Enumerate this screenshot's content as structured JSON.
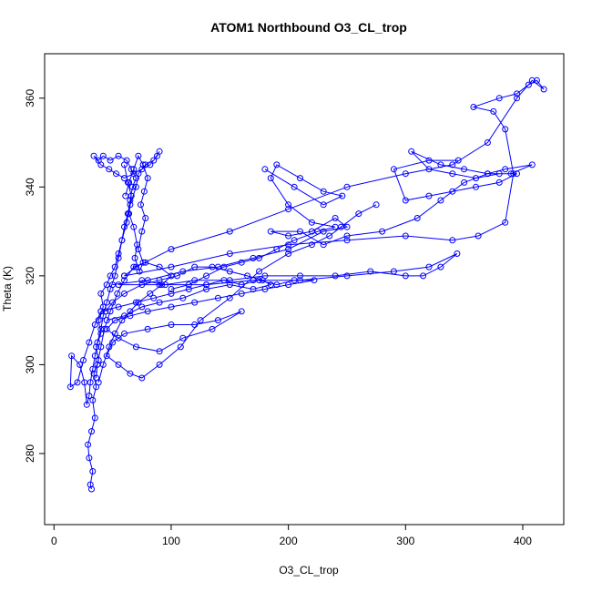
{
  "chart_data": {
    "type": "line",
    "title": "ATOM1 Northbound O3_CL_trop",
    "xlabel": "O3_CL_trop",
    "ylabel": "Theta (K)",
    "xlim": [
      -8,
      435
    ],
    "ylim": [
      264,
      370
    ],
    "xticks": [
      0,
      100,
      200,
      300,
      400
    ],
    "yticks": [
      280,
      300,
      320,
      340,
      360
    ],
    "grid": false,
    "legend": "none",
    "color": "#0000ff",
    "series": [
      {
        "points": [
          [
            32,
            272
          ],
          [
            31,
            273
          ],
          [
            33,
            276
          ],
          [
            30,
            279
          ],
          [
            29,
            282
          ],
          [
            32,
            285
          ],
          [
            35,
            288
          ],
          [
            33,
            292
          ],
          [
            36,
            295
          ],
          [
            34,
            298
          ],
          [
            38,
            301
          ],
          [
            36,
            304
          ],
          [
            40,
            307
          ],
          [
            38,
            310
          ],
          [
            42,
            313
          ],
          [
            40,
            316
          ],
          [
            45,
            318
          ],
          [
            48,
            320
          ],
          [
            52,
            322
          ],
          [
            55,
            325
          ],
          [
            58,
            328
          ],
          [
            60,
            331
          ],
          [
            63,
            334
          ],
          [
            65,
            337
          ],
          [
            67,
            340
          ],
          [
            70,
            342
          ],
          [
            66,
            344
          ],
          [
            62,
            346
          ],
          [
            55,
            347
          ],
          [
            48,
            346
          ],
          [
            42,
            347
          ],
          [
            38,
            346
          ],
          [
            34,
            347
          ],
          [
            40,
            345
          ],
          [
            47,
            344
          ],
          [
            53,
            343
          ],
          [
            60,
            342
          ],
          [
            68,
            343
          ],
          [
            75,
            344
          ],
          [
            82,
            345
          ],
          [
            88,
            347
          ],
          [
            90,
            348
          ],
          [
            85,
            346
          ],
          [
            78,
            345
          ],
          [
            72,
            343
          ],
          [
            70,
            340
          ],
          [
            65,
            336
          ],
          [
            62,
            332
          ],
          [
            58,
            328
          ],
          [
            55,
            324
          ],
          [
            52,
            320
          ],
          [
            48,
            317
          ],
          [
            45,
            314
          ],
          [
            42,
            311
          ],
          [
            40,
            308
          ],
          [
            37,
            305
          ],
          [
            35,
            302
          ],
          [
            33,
            299
          ],
          [
            31,
            296
          ],
          [
            30,
            293
          ],
          [
            28,
            291
          ],
          [
            26,
            296
          ],
          [
            22,
            300
          ],
          [
            15,
            302
          ],
          [
            14,
            295
          ],
          [
            20,
            296
          ],
          [
            25,
            301
          ],
          [
            30,
            305
          ],
          [
            35,
            309
          ],
          [
            40,
            312
          ]
        ]
      },
      {
        "points": [
          [
            40,
            312
          ],
          [
            55,
            313
          ],
          [
            70,
            314
          ],
          [
            85,
            315
          ],
          [
            100,
            316
          ],
          [
            115,
            317
          ],
          [
            130,
            318
          ],
          [
            145,
            319
          ],
          [
            160,
            318
          ],
          [
            175,
            319
          ],
          [
            190,
            318
          ],
          [
            205,
            319
          ],
          [
            222,
            319
          ],
          [
            200,
            318
          ],
          [
            180,
            317
          ],
          [
            160,
            316
          ],
          [
            140,
            315
          ],
          [
            120,
            314
          ],
          [
            100,
            313
          ],
          [
            80,
            312
          ],
          [
            65,
            311
          ],
          [
            52,
            310
          ],
          [
            45,
            308
          ],
          [
            55,
            306
          ],
          [
            70,
            304
          ],
          [
            90,
            303
          ],
          [
            110,
            306
          ],
          [
            135,
            308
          ],
          [
            160,
            312
          ],
          [
            140,
            310
          ],
          [
            120,
            309
          ],
          [
            100,
            309
          ],
          [
            80,
            308
          ],
          [
            60,
            307
          ],
          [
            50,
            305
          ],
          [
            45,
            302
          ],
          [
            55,
            300
          ],
          [
            65,
            298
          ],
          [
            75,
            297
          ],
          [
            90,
            300
          ],
          [
            108,
            304
          ],
          [
            125,
            310
          ],
          [
            150,
            315
          ],
          [
            175,
            321
          ],
          [
            200,
            325
          ],
          [
            220,
            327
          ],
          [
            235,
            329
          ],
          [
            245,
            331
          ],
          [
            260,
            334
          ],
          [
            275,
            336
          ]
        ]
      },
      {
        "points": [
          [
            50,
            318
          ],
          [
            80,
            319
          ],
          [
            110,
            321
          ],
          [
            140,
            322
          ],
          [
            170,
            324
          ],
          [
            200,
            326
          ],
          [
            230,
            330
          ],
          [
            250,
            331
          ],
          [
            240,
            333
          ],
          [
            220,
            330
          ],
          [
            200,
            329
          ],
          [
            185,
            330
          ],
          [
            210,
            330
          ],
          [
            230,
            327
          ],
          [
            250,
            329
          ],
          [
            280,
            330
          ],
          [
            310,
            333
          ],
          [
            330,
            337
          ],
          [
            350,
            341
          ],
          [
            370,
            343
          ],
          [
            385,
            344
          ],
          [
            408,
            345
          ],
          [
            390,
            343
          ],
          [
            370,
            343
          ],
          [
            350,
            344
          ],
          [
            330,
            345
          ],
          [
            305,
            348
          ],
          [
            320,
            344
          ],
          [
            340,
            343
          ],
          [
            360,
            342
          ],
          [
            380,
            343
          ],
          [
            395,
            343
          ],
          [
            380,
            341
          ],
          [
            360,
            340
          ],
          [
            340,
            339
          ],
          [
            320,
            338
          ],
          [
            300,
            337
          ],
          [
            290,
            344
          ],
          [
            320,
            346
          ],
          [
            345,
            346
          ]
        ]
      },
      {
        "points": [
          [
            60,
            320
          ],
          [
            100,
            322
          ],
          [
            150,
            325
          ],
          [
            200,
            327
          ],
          [
            250,
            328
          ],
          [
            300,
            329
          ],
          [
            340,
            328
          ],
          [
            362,
            329
          ],
          [
            385,
            332
          ],
          [
            392,
            343
          ],
          [
            385,
            353
          ],
          [
            375,
            357
          ],
          [
            358,
            358
          ],
          [
            380,
            360
          ],
          [
            395,
            361
          ],
          [
            405,
            363
          ],
          [
            412,
            364
          ],
          [
            418,
            362
          ],
          [
            408,
            364
          ],
          [
            395,
            360
          ],
          [
            370,
            350
          ],
          [
            340,
            345
          ],
          [
            300,
            343
          ],
          [
            250,
            340
          ],
          [
            200,
            335
          ],
          [
            150,
            330
          ],
          [
            100,
            326
          ],
          [
            70,
            322
          ],
          [
            60,
            320
          ]
        ]
      },
      {
        "points": [
          [
            55,
            318
          ],
          [
            90,
            318
          ],
          [
            130,
            318
          ],
          [
            170,
            319
          ],
          [
            210,
            319
          ],
          [
            250,
            320
          ],
          [
            290,
            321
          ],
          [
            320,
            322
          ],
          [
            344,
            325
          ],
          [
            330,
            322
          ],
          [
            315,
            320
          ],
          [
            300,
            320
          ],
          [
            270,
            321
          ],
          [
            240,
            320
          ],
          [
            210,
            320
          ],
          [
            180,
            320
          ],
          [
            150,
            319
          ],
          [
            120,
            319
          ],
          [
            95,
            318
          ],
          [
            75,
            319
          ]
        ]
      },
      {
        "points": [
          [
            45,
            310
          ],
          [
            60,
            311
          ],
          [
            75,
            313
          ],
          [
            90,
            314
          ],
          [
            110,
            315
          ],
          [
            130,
            317
          ],
          [
            150,
            318
          ],
          [
            170,
            317
          ],
          [
            185,
            318
          ],
          [
            178,
            319
          ],
          [
            165,
            320
          ],
          [
            150,
            321
          ],
          [
            135,
            322
          ],
          [
            120,
            322
          ],
          [
            105,
            320
          ],
          [
            90,
            319
          ],
          [
            75,
            318
          ],
          [
            60,
            316
          ],
          [
            50,
            314
          ],
          [
            44,
            312
          ]
        ]
      },
      {
        "points": [
          [
            38,
            296
          ],
          [
            42,
            300
          ],
          [
            47,
            304
          ],
          [
            52,
            307
          ],
          [
            58,
            310
          ],
          [
            65,
            312
          ],
          [
            72,
            314
          ],
          [
            82,
            316
          ],
          [
            92,
            318
          ],
          [
            100,
            320
          ],
          [
            90,
            322
          ],
          [
            78,
            323
          ],
          [
            68,
            322
          ],
          [
            60,
            319
          ],
          [
            54,
            316
          ],
          [
            48,
            312
          ],
          [
            43,
            308
          ],
          [
            40,
            304
          ],
          [
            37,
            300
          ],
          [
            36,
            297
          ]
        ]
      },
      {
        "points": [
          [
            60,
            345
          ],
          [
            63,
            341
          ],
          [
            66,
            338
          ],
          [
            64,
            334
          ],
          [
            68,
            331
          ],
          [
            71,
            327
          ],
          [
            69,
            324
          ],
          [
            73,
            321
          ],
          [
            76,
            323
          ],
          [
            72,
            326
          ],
          [
            75,
            330
          ],
          [
            78,
            333
          ],
          [
            74,
            336
          ],
          [
            77,
            339
          ],
          [
            80,
            342
          ],
          [
            76,
            345
          ],
          [
            72,
            347
          ],
          [
            68,
            344
          ],
          [
            64,
            341
          ],
          [
            61,
            338
          ]
        ]
      },
      {
        "points": [
          [
            180,
            344
          ],
          [
            205,
            340
          ],
          [
            230,
            336
          ],
          [
            246,
            338
          ],
          [
            230,
            339
          ],
          [
            210,
            342
          ],
          [
            190,
            345
          ],
          [
            185,
            342
          ],
          [
            200,
            336
          ],
          [
            220,
            332
          ],
          [
            240,
            331
          ],
          [
            225,
            330
          ],
          [
            205,
            328
          ],
          [
            190,
            326
          ],
          [
            175,
            324
          ],
          [
            160,
            323
          ],
          [
            145,
            322
          ],
          [
            130,
            320
          ],
          [
            115,
            318
          ],
          [
            100,
            317
          ]
        ]
      }
    ]
  }
}
